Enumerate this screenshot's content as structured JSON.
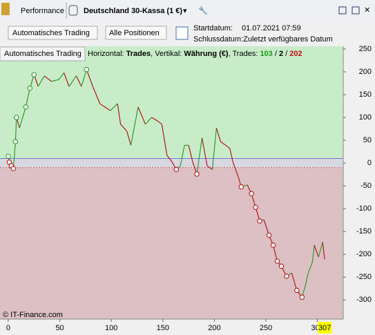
{
  "toolbar": {
    "tab1": "Performance",
    "tab2": "Deutschland 30-Kassa (1 €)"
  },
  "controls": {
    "dropdown1": "Automatisches Trading",
    "dropdown2": "Alle Positionen",
    "start_label": "Startdatum:",
    "start_value": "01.07.2021 07:59",
    "end_label": "Schlussdatum:Zuletzt verfügbares Datum"
  },
  "chart_data": {
    "type": "line",
    "panel_label": "Automatisches Trading",
    "caption": {
      "h_label": "Horizontal:",
      "h_value": "Trades",
      "v_label": ", Vertikal:",
      "v_value": "Währung (€)",
      "t_label": ", Trades:",
      "t_win": "103",
      "sep1": "/",
      "t_even": "2",
      "sep2": "/",
      "t_loss": "202"
    },
    "watermark": "© IT-Finance.com",
    "cursor": 307,
    "xlim": [
      -8,
      325
    ],
    "ylim": [
      -342,
      256
    ],
    "xticks": [
      0,
      50,
      100,
      150,
      200,
      250,
      300
    ],
    "yticks": [
      250,
      200,
      150,
      100,
      50,
      0,
      -50,
      -100,
      -150,
      -200,
      -250,
      -300
    ],
    "zones": {
      "upper": 10,
      "lower": -10,
      "upper_color": "#c8ecc8",
      "lower_color": "#dcc0c4",
      "band_color": "#d8d8e0",
      "zero_color": "#4b5bd6"
    },
    "rise_color": "#2e9a2e",
    "fall_color": "#b01818",
    "series": [
      {
        "style": "line",
        "x": [
          0,
          1,
          3,
          5,
          7,
          8,
          11,
          17,
          21,
          25,
          29,
          35,
          42,
          49,
          54,
          59,
          66,
          71,
          76,
          82,
          89,
          99,
          106,
          109,
          115,
          119,
          126,
          133,
          139,
          145,
          149,
          154,
          159,
          163,
          167,
          171,
          175,
          179,
          183,
          188,
          193,
          198,
          202,
          206,
          211,
          215,
          218,
          223,
          226,
          232,
          236,
          240,
          244,
          248,
          253,
          257,
          261,
          265,
          270,
          275,
          280,
          285,
          288,
          291,
          295,
          297,
          301,
          305,
          307
        ],
        "values": [
          15,
          2,
          -6,
          -12,
          47,
          100,
          77,
          123,
          164,
          194,
          168,
          191,
          179,
          183,
          198,
          168,
          191,
          168,
          205,
          168,
          130,
          115,
          130,
          85,
          70,
          39,
          123,
          85,
          100,
          92,
          85,
          17,
          2,
          -14,
          -6,
          39,
          39,
          2,
          -24,
          55,
          -6,
          -14,
          77,
          47,
          39,
          32,
          2,
          -29,
          -52,
          -48,
          -67,
          -97,
          -127,
          -124,
          -158,
          -180,
          -215,
          -226,
          -248,
          -241,
          -279,
          -294,
          -271,
          -241,
          -218,
          -180,
          -206,
          -173,
          -211
        ]
      },
      {
        "style": "circle",
        "color": "#2e9a2e",
        "x": [
          0,
          7,
          8,
          17,
          21,
          25,
          76
        ],
        "values": [
          15,
          47,
          100,
          123,
          164,
          194,
          205
        ]
      },
      {
        "style": "circle",
        "color": "#b01818",
        "x": [
          1,
          3,
          5,
          163,
          183,
          226,
          236,
          240,
          244,
          253,
          257,
          261,
          265,
          270,
          280,
          285
        ],
        "values": [
          2,
          -6,
          -12,
          -14,
          -24,
          -52,
          -67,
          -97,
          -127,
          -158,
          -180,
          -215,
          -226,
          -248,
          -279,
          -294
        ]
      }
    ]
  }
}
